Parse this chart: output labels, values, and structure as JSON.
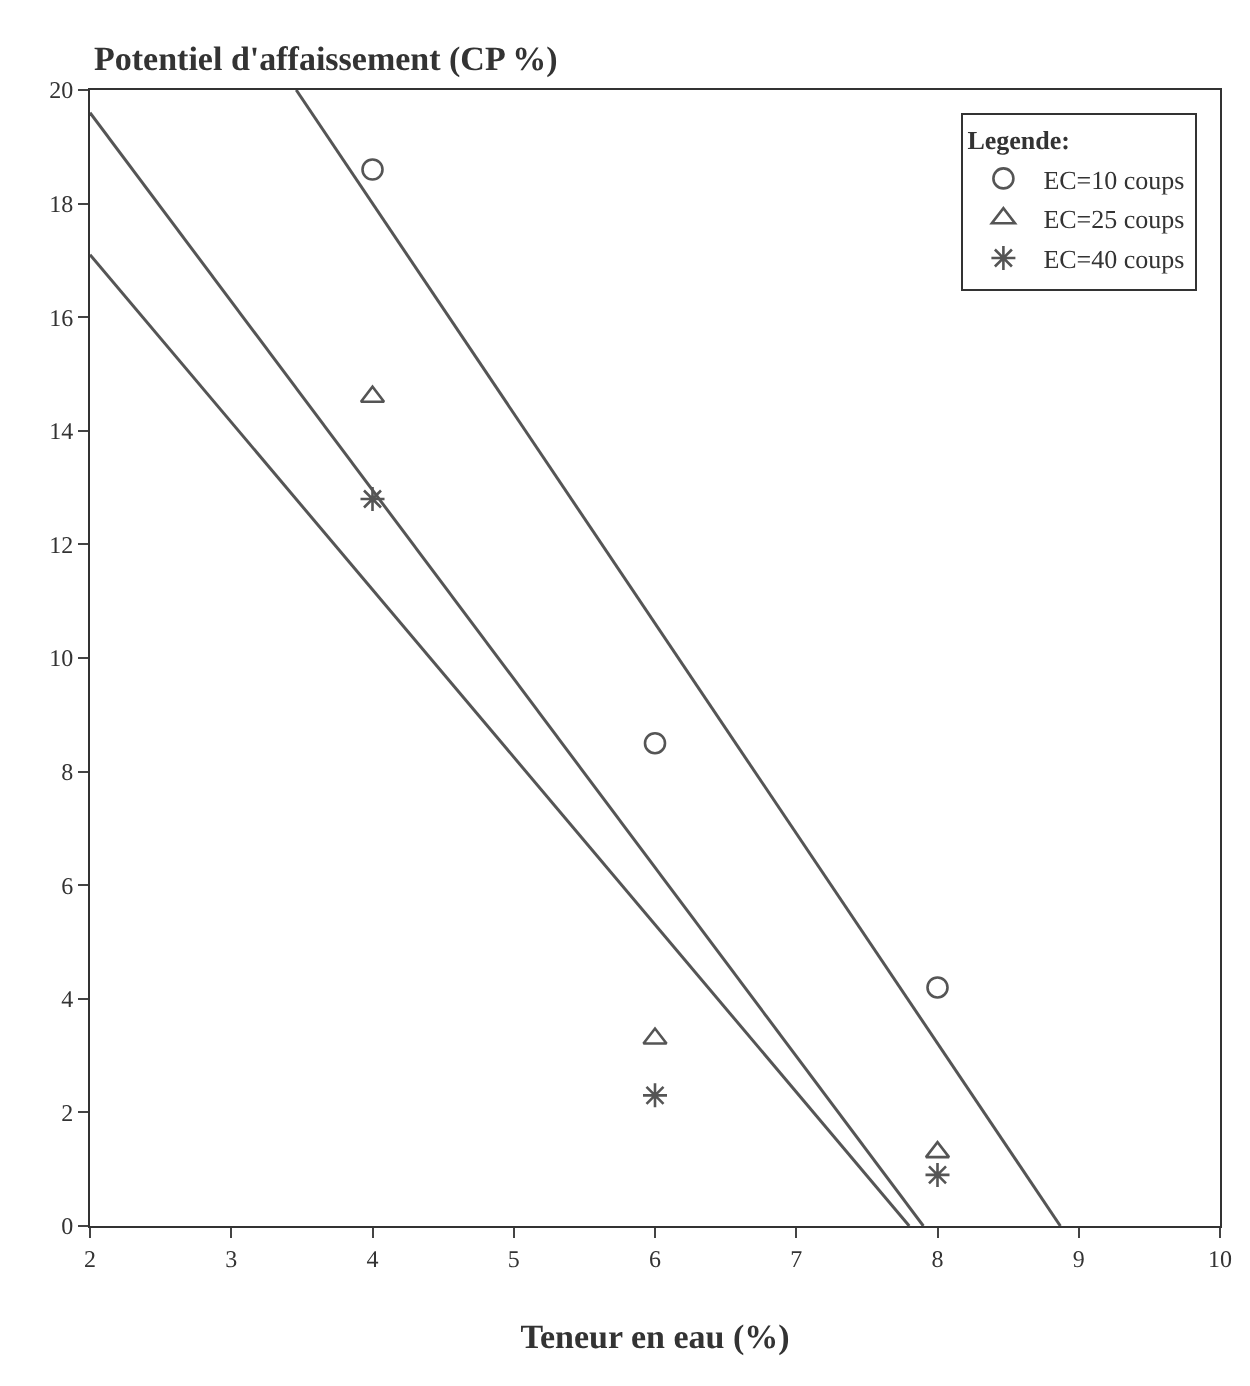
{
  "chart_data": {
    "type": "scatter",
    "ylabel": "Potentiel d'affaissement (CP %)",
    "xlabel": "Teneur en eau (%)",
    "legend_title": "Legende:",
    "legend": "top right",
    "grid": false,
    "xlim": [
      2,
      10
    ],
    "xticks": [
      2,
      3,
      4,
      5,
      6,
      7,
      8,
      9,
      10
    ],
    "ylim": [
      0,
      20
    ],
    "yticks": [
      0,
      2,
      4,
      6,
      8,
      10,
      12,
      14,
      16,
      18,
      20
    ],
    "series": [
      {
        "name": "EC=10 coups",
        "marker": "circle",
        "color": "#555555",
        "x": [
          4,
          6,
          8
        ],
        "values": [
          18.6,
          8.5,
          4.2
        ]
      },
      {
        "name": "EC=25 coups",
        "marker": "triangle",
        "color": "#555555",
        "x": [
          4,
          6,
          8
        ],
        "values": [
          14.6,
          3.3,
          1.3
        ]
      },
      {
        "name": "EC=40 coups",
        "marker": "cross",
        "color": "#555555",
        "x": [
          4,
          6,
          8
        ],
        "values": [
          12.8,
          2.3,
          0.9
        ]
      },
      {
        "type": "line",
        "color": "#555555",
        "x": [
          3.46,
          8.87
        ],
        "values": [
          20,
          0
        ]
      },
      {
        "type": "line",
        "color": "#555555",
        "x": [
          2,
          7.9
        ],
        "values": [
          19.6,
          0
        ]
      },
      {
        "type": "line",
        "color": "#555555",
        "x": [
          2,
          7.8
        ],
        "values": [
          17.1,
          0
        ]
      }
    ]
  }
}
